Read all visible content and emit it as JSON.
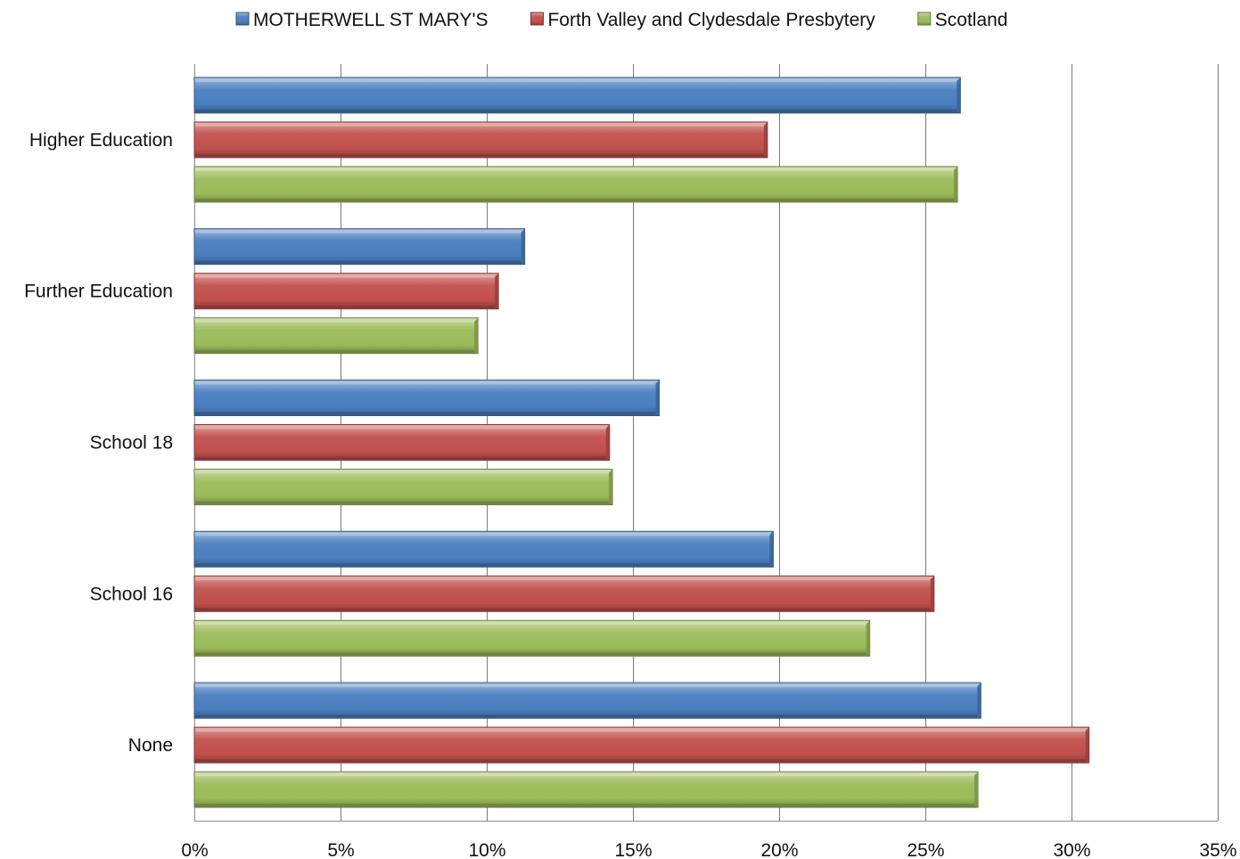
{
  "chart_data": {
    "type": "bar",
    "orientation": "horizontal",
    "title": "",
    "xlabel": "",
    "ylabel": "",
    "xlim": [
      0,
      35
    ],
    "x_ticks": [
      "0%",
      "5%",
      "10%",
      "15%",
      "20%",
      "25%",
      "30%",
      "35%"
    ],
    "grid": "vertical",
    "legend_position": "top",
    "categories": [
      "Higher Education",
      "Further Education",
      "School 18",
      "School 16",
      "None"
    ],
    "series": [
      {
        "name": "MOTHERWELL ST MARY'S",
        "color": "#4a7ebf",
        "values": [
          26.2,
          11.3,
          15.9,
          19.8,
          26.9
        ]
      },
      {
        "name": "Forth Valley and Clydesdale Presbytery",
        "color": "#c0504d",
        "values": [
          19.6,
          10.4,
          14.2,
          25.3,
          30.6
        ]
      },
      {
        "name": "Scotland",
        "color": "#9bbb59",
        "values": [
          26.1,
          9.7,
          14.3,
          23.1,
          26.8
        ]
      }
    ]
  }
}
